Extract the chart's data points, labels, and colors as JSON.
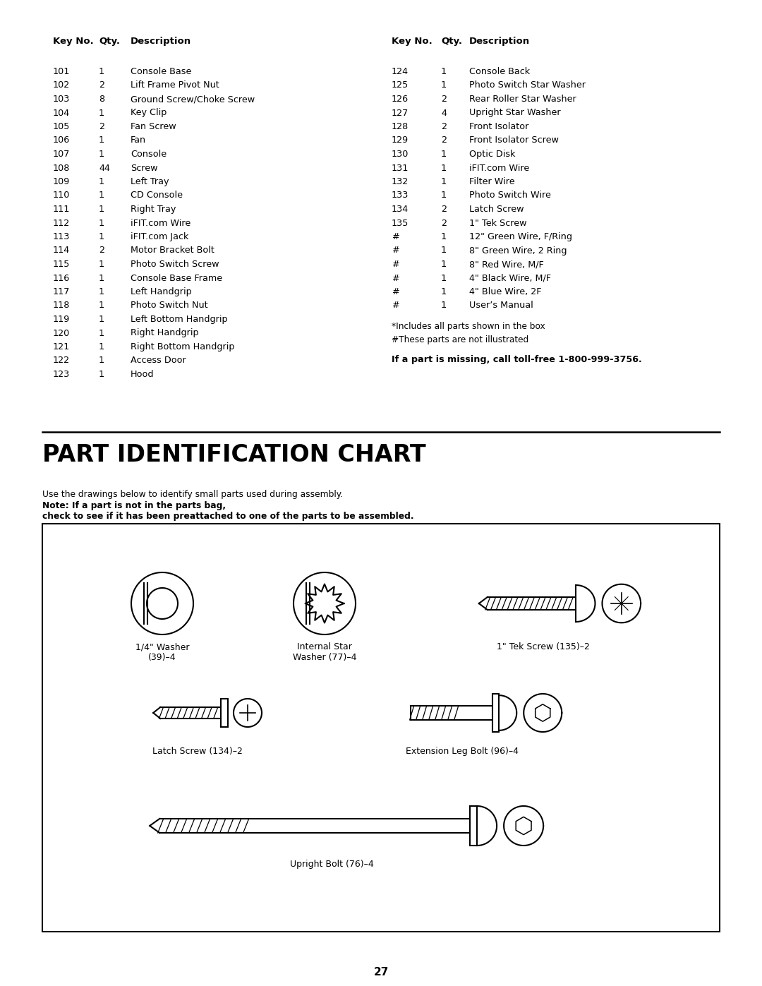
{
  "bg_color": "#ffffff",
  "page_number": "27",
  "left_table": {
    "header": [
      "Key No.",
      "Qty.",
      "Description"
    ],
    "rows": [
      [
        "101",
        "1",
        "Console Base"
      ],
      [
        "102",
        "2",
        "Lift Frame Pivot Nut"
      ],
      [
        "103",
        "8",
        "Ground Screw/Choke Screw"
      ],
      [
        "104",
        "1",
        "Key Clip"
      ],
      [
        "105",
        "2",
        "Fan Screw"
      ],
      [
        "106",
        "1",
        "Fan"
      ],
      [
        "107",
        "1",
        "Console"
      ],
      [
        "108",
        "44",
        "Screw"
      ],
      [
        "109",
        "1",
        "Left Tray"
      ],
      [
        "110",
        "1",
        "CD Console"
      ],
      [
        "111",
        "1",
        "Right Tray"
      ],
      [
        "112",
        "1",
        "iFIT.com Wire"
      ],
      [
        "113",
        "1",
        "iFIT.com Jack"
      ],
      [
        "114",
        "2",
        "Motor Bracket Bolt"
      ],
      [
        "115",
        "1",
        "Photo Switch Screw"
      ],
      [
        "116",
        "1",
        "Console Base Frame"
      ],
      [
        "117",
        "1",
        "Left Handgrip"
      ],
      [
        "118",
        "1",
        "Photo Switch Nut"
      ],
      [
        "119",
        "1",
        "Left Bottom Handgrip"
      ],
      [
        "120",
        "1",
        "Right Handgrip"
      ],
      [
        "121",
        "1",
        "Right Bottom Handgrip"
      ],
      [
        "122",
        "1",
        "Access Door"
      ],
      [
        "123",
        "1",
        "Hood"
      ]
    ]
  },
  "right_table": {
    "header": [
      "Key No.",
      "Qty.",
      "Description"
    ],
    "rows": [
      [
        "124",
        "1",
        "Console Back"
      ],
      [
        "125",
        "1",
        "Photo Switch Star Washer"
      ],
      [
        "126",
        "2",
        "Rear Roller Star Washer"
      ],
      [
        "127",
        "4",
        "Upright Star Washer"
      ],
      [
        "128",
        "2",
        "Front Isolator"
      ],
      [
        "129",
        "2",
        "Front Isolator Screw"
      ],
      [
        "130",
        "1",
        "Optic Disk"
      ],
      [
        "131",
        "1",
        "iFIT.com Wire"
      ],
      [
        "132",
        "1",
        "Filter Wire"
      ],
      [
        "133",
        "1",
        "Photo Switch Wire"
      ],
      [
        "134",
        "2",
        "Latch Screw"
      ],
      [
        "135",
        "2",
        "1\" Tek Screw"
      ],
      [
        "#",
        "1",
        "12\" Green Wire, F/Ring"
      ],
      [
        "#",
        "1",
        "8\" Green Wire, 2 Ring"
      ],
      [
        "#",
        "1",
        "8\" Red Wire, M/F"
      ],
      [
        "#",
        "1",
        "4\" Black Wire, M/F"
      ],
      [
        "#",
        "1",
        "4\" Blue Wire, 2F"
      ],
      [
        "#",
        "1",
        "User’s Manual"
      ]
    ]
  },
  "footnotes": [
    "*Includes all parts shown in the box",
    "#These parts are not illustrated"
  ],
  "bold_note": "If a part is missing, call toll-free 1-800-999-3756.",
  "section_title": "PART IDENTIFICATION CHART",
  "intro_text_normal": "Use the drawings below to identify small parts used during assembly. ",
  "intro_text_bold": "Note: If a part is not in the parts bag,\ncheck to see if it has been preattached to one of the parts to be assembled."
}
